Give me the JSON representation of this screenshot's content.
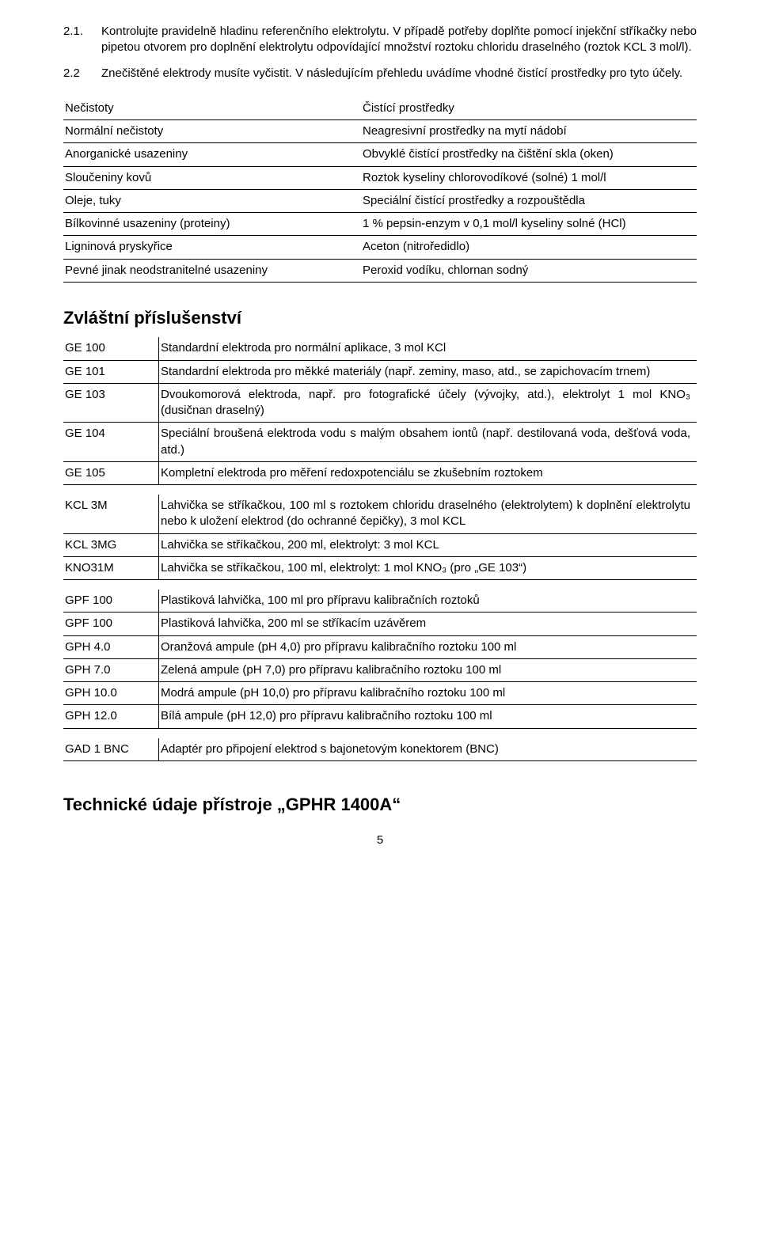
{
  "para1": {
    "num": "2.1.",
    "text": "Kontrolujte pravidelně hladinu referenčního elektrolytu. V případě potřeby doplňte pomocí injekční stříkačky nebo pipetou otvorem pro doplnění elektrolytu odpovídající množství roztoku chloridu draselného (roztok KCL 3 mol/l)."
  },
  "para2": {
    "num": "2.2",
    "text": "Znečištěné elektrody musíte vyčistit. V následujícím přehledu uvádíme vhodné čistící prostředky pro tyto účely."
  },
  "cleaning": {
    "header": {
      "left": "Nečistoty",
      "right": "Čistící prostředky"
    },
    "rows": [
      {
        "left": "Normální nečistoty",
        "right": "Neagresivní prostředky na mytí nádobí"
      },
      {
        "left": "Anorganické usazeniny",
        "right": "Obvyklé čistící prostředky na čištění skla (oken)"
      },
      {
        "left": "Sloučeniny kovů",
        "right": "Roztok kyseliny chlorovodíkové (solné) 1 mol/l"
      },
      {
        "left": "Oleje, tuky",
        "right": "Speciální čistící prostředky a rozpouštědla"
      },
      {
        "left": "Bílkovinné usazeniny (proteiny)",
        "right": "1 % pepsin-enzym v 0,1 mol/l kyseliny solné (HCl)"
      },
      {
        "left": "Ligninová pryskyřice",
        "right": "Aceton (nitroředidlo)"
      },
      {
        "left": "Pevné jinak neodstranitelné usazeniny",
        "right": "Peroxid vodíku, chlornan sodný"
      }
    ]
  },
  "accessories_heading": "Zvláštní příslušenství",
  "acc1": [
    {
      "code": "GE 100",
      "desc": "Standardní elektroda pro normální aplikace, 3 mol KCl"
    },
    {
      "code": "GE 101",
      "desc": "Standardní elektroda pro měkké materiály (např. zeminy, maso, atd., se zapichovacím trnem)"
    },
    {
      "code": "GE 103",
      "desc": "Dvoukomorová elektroda, např. pro fotografické účely (vývojky, atd.), elektrolyt 1 mol KNO₃ (dusičnan draselný)"
    },
    {
      "code": "GE 104",
      "desc": "Speciální broušená elektroda vodu s malým obsahem iontů (např. destilovaná voda, dešťová voda, atd.)"
    },
    {
      "code": "GE 105",
      "desc": "Kompletní elektroda pro měření redoxpotenciálu se zkušebním roztokem"
    }
  ],
  "acc2": [
    {
      "code": "KCL 3M",
      "desc": "Lahvička se stříkačkou, 100 ml s roztokem chloridu draselného (elektrolytem) k doplnění elektrolytu nebo k uložení elektrod (do ochranné čepičky), 3 mol KCL"
    },
    {
      "code": "KCL 3MG",
      "desc": "Lahvička se stříkačkou, 200 ml, elektrolyt: 3 mol KCL"
    },
    {
      "code": "KNO31M",
      "desc": "Lahvička se stříkačkou, 100 ml, elektrolyt: 1 mol KNO₃ (pro „GE 103“)"
    }
  ],
  "acc3": [
    {
      "code": "GPF 100",
      "desc": "Plastiková lahvička, 100 ml pro přípravu kalibračních roztoků"
    },
    {
      "code": "GPF 100",
      "desc": "Plastiková lahvička, 200 ml se stříkacím uzávěrem"
    },
    {
      "code": "GPH 4.0",
      "desc": "Oranžová ampule (pH 4,0) pro přípravu kalibračního roztoku 100 ml"
    },
    {
      "code": "GPH 7.0",
      "desc": "Zelená ampule (pH 7,0) pro přípravu kalibračního roztoku 100 ml"
    },
    {
      "code": "GPH 10.0",
      "desc": "Modrá ampule (pH 10,0) pro přípravu kalibračního roztoku 100 ml"
    },
    {
      "code": "GPH 12.0",
      "desc": "Bílá ampule (pH 12,0) pro přípravu kalibračního roztoku 100 ml"
    }
  ],
  "acc4": [
    {
      "code": "GAD 1 BNC",
      "desc": "Adaptér pro připojení elektrod s bajonetovým konektorem (BNC)"
    }
  ],
  "tech_heading": "Technické údaje přístroje „GPHR 1400A“",
  "page_num": "5"
}
